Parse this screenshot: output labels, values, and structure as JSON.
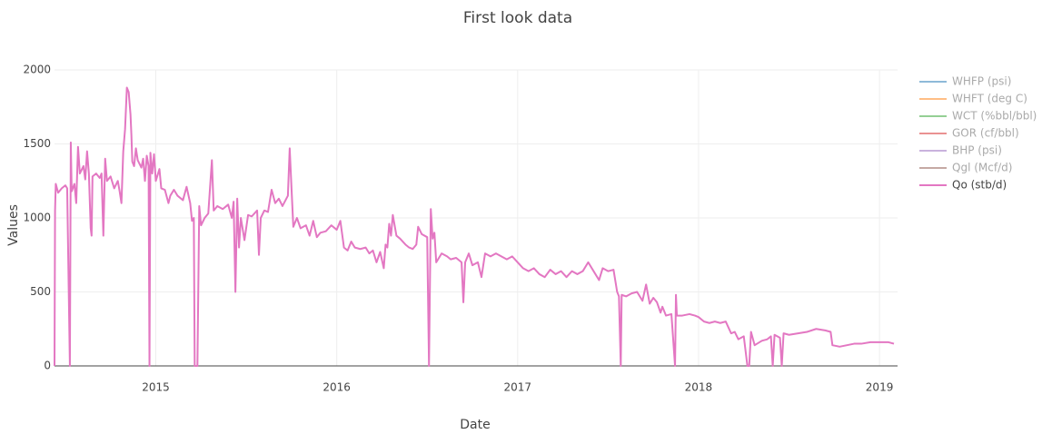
{
  "chart_data": {
    "type": "line",
    "title": "First look data",
    "x_label": "Date",
    "y_label": "Values",
    "xlim": [
      2014.44,
      2019.1
    ],
    "xticks": [
      2015,
      2016,
      2017,
      2018,
      2019
    ],
    "ylim": [
      0,
      2000
    ],
    "yticks": [
      0,
      500,
      1000,
      1500,
      2000
    ],
    "grid": true,
    "x": [
      2014.44,
      2014.443,
      2014.447,
      2014.46,
      2014.48,
      2014.5,
      2014.51,
      2014.525,
      2014.53,
      2014.535,
      2014.55,
      2014.56,
      2014.57,
      2014.58,
      2014.6,
      2014.61,
      2014.62,
      2014.63,
      2014.64,
      2014.645,
      2014.65,
      2014.67,
      2014.69,
      2014.7,
      2014.71,
      2014.72,
      2014.73,
      2014.75,
      2014.77,
      2014.79,
      2014.8,
      2014.81,
      2014.82,
      2014.83,
      2014.84,
      2014.85,
      2014.86,
      2014.865,
      2014.87,
      2014.88,
      2014.89,
      2014.9,
      2014.92,
      2014.93,
      2014.94,
      2014.95,
      2014.96,
      2014.965,
      2014.97,
      2014.98,
      2014.99,
      2015.0,
      2015.02,
      2015.03,
      2015.05,
      2015.07,
      2015.08,
      2015.1,
      2015.12,
      2015.15,
      2015.17,
      2015.19,
      2015.2,
      2015.21,
      2015.215,
      2015.23,
      2015.24,
      2015.25,
      2015.27,
      2015.29,
      2015.31,
      2015.32,
      2015.34,
      2015.37,
      2015.4,
      2015.42,
      2015.43,
      2015.44,
      2015.45,
      2015.46,
      2015.47,
      2015.49,
      2015.51,
      2015.53,
      2015.56,
      2015.57,
      2015.58,
      2015.6,
      2015.62,
      2015.64,
      2015.66,
      2015.68,
      2015.7,
      2015.73,
      2015.74,
      2015.75,
      2015.76,
      2015.78,
      2015.8,
      2015.83,
      2015.85,
      2015.87,
      2015.89,
      2015.91,
      2015.94,
      2015.97,
      2016.0,
      2016.02,
      2016.04,
      2016.06,
      2016.08,
      2016.1,
      2016.13,
      2016.16,
      2016.18,
      2016.2,
      2016.22,
      2016.24,
      2016.26,
      2016.27,
      2016.28,
      2016.29,
      2016.3,
      2016.31,
      2016.33,
      2016.35,
      2016.38,
      2016.4,
      2016.42,
      2016.44,
      2016.45,
      2016.47,
      2016.5,
      2016.51,
      2016.52,
      2016.53,
      2016.54,
      2016.55,
      2016.58,
      2016.61,
      2016.63,
      2016.66,
      2016.69,
      2016.7,
      2016.71,
      2016.73,
      2016.75,
      2016.78,
      2016.8,
      2016.82,
      2016.85,
      2016.88,
      2016.91,
      2016.94,
      2016.97,
      2017.0,
      2017.03,
      2017.06,
      2017.09,
      2017.12,
      2017.15,
      2017.18,
      2017.21,
      2017.24,
      2017.27,
      2017.3,
      2017.33,
      2017.36,
      2017.39,
      2017.42,
      2017.45,
      2017.47,
      2017.5,
      2017.53,
      2017.55,
      2017.56,
      2017.57,
      2017.575,
      2017.6,
      2017.63,
      2017.66,
      2017.69,
      2017.71,
      2017.73,
      2017.75,
      2017.77,
      2017.79,
      2017.8,
      2017.82,
      2017.85,
      2017.87,
      2017.875,
      2017.88,
      2017.91,
      2017.95,
      2017.98,
      2018.0,
      2018.03,
      2018.06,
      2018.09,
      2018.12,
      2018.15,
      2018.18,
      2018.2,
      2018.22,
      2018.25,
      2018.27,
      2018.28,
      2018.29,
      2018.31,
      2018.35,
      2018.38,
      2018.4,
      2018.41,
      2018.42,
      2018.45,
      2018.46,
      2018.47,
      2018.5,
      2018.55,
      2018.6,
      2018.65,
      2018.7,
      2018.73,
      2018.74,
      2018.78,
      2018.82,
      2018.86,
      2018.9,
      2018.95,
      2019.0,
      2019.05,
      2019.08
    ],
    "series": [
      {
        "name": "WHFP (psi)",
        "color": "#1f77b4",
        "visible": false
      },
      {
        "name": "WHFT (deg C)",
        "color": "#ff7f0e",
        "visible": false
      },
      {
        "name": "WCT (%bbl/bbl)",
        "color": "#2ca02c",
        "visible": false
      },
      {
        "name": "GOR (cf/bbl)",
        "color": "#d62728",
        "visible": false
      },
      {
        "name": "BHP (psi)",
        "color": "#9467bd",
        "visible": false
      },
      {
        "name": "Qgl (Mcf/d)",
        "color": "#8c564b",
        "visible": false
      },
      {
        "name": "Qo (stb/d)",
        "color": "#e377c2",
        "visible": true,
        "values": [
          0,
          1050,
          1230,
          1170,
          1200,
          1220,
          1200,
          0,
          1510,
          1180,
          1230,
          1100,
          1480,
          1300,
          1350,
          1260,
          1450,
          1300,
          930,
          880,
          1280,
          1300,
          1270,
          1300,
          880,
          1400,
          1250,
          1280,
          1200,
          1250,
          1180,
          1100,
          1450,
          1600,
          1880,
          1850,
          1700,
          1560,
          1380,
          1350,
          1470,
          1390,
          1340,
          1400,
          1250,
          1420,
          1350,
          0,
          1440,
          1300,
          1430,
          1250,
          1330,
          1200,
          1190,
          1100,
          1150,
          1190,
          1150,
          1120,
          1210,
          1100,
          980,
          1000,
          0,
          0,
          1080,
          950,
          1000,
          1030,
          1390,
          1050,
          1080,
          1060,
          1090,
          1000,
          1110,
          500,
          1130,
          800,
          1000,
          850,
          1020,
          1010,
          1050,
          750,
          1000,
          1050,
          1040,
          1190,
          1100,
          1130,
          1080,
          1150,
          1470,
          1200,
          940,
          1000,
          930,
          950,
          880,
          980,
          870,
          900,
          910,
          950,
          920,
          980,
          800,
          780,
          840,
          800,
          790,
          800,
          760,
          780,
          700,
          770,
          660,
          820,
          800,
          960,
          880,
          1020,
          880,
          860,
          820,
          800,
          790,
          820,
          940,
          890,
          870,
          0,
          1060,
          860,
          900,
          700,
          760,
          740,
          720,
          730,
          700,
          430,
          700,
          760,
          680,
          700,
          600,
          760,
          740,
          760,
          740,
          720,
          740,
          700,
          660,
          640,
          660,
          620,
          600,
          650,
          620,
          640,
          600,
          640,
          620,
          640,
          700,
          640,
          580,
          660,
          640,
          650,
          500,
          470,
          0,
          480,
          470,
          490,
          500,
          440,
          550,
          420,
          460,
          430,
          360,
          400,
          340,
          350,
          0,
          480,
          340,
          340,
          350,
          340,
          330,
          300,
          290,
          300,
          290,
          300,
          220,
          230,
          180,
          200,
          0,
          0,
          230,
          140,
          170,
          180,
          200,
          0,
          210,
          190,
          0,
          220,
          210,
          220,
          230,
          250,
          240,
          230,
          140,
          130,
          140,
          150,
          150,
          160,
          160,
          160,
          150
        ]
      }
    ]
  }
}
